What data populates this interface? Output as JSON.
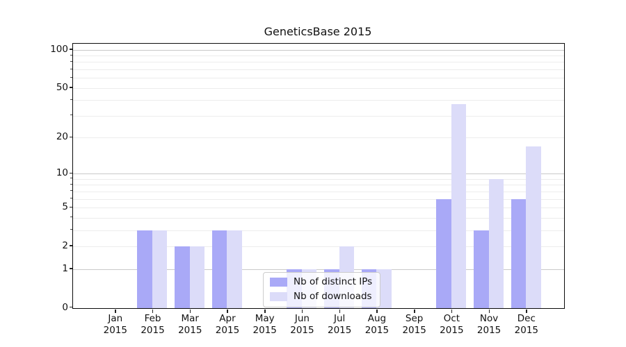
{
  "chart_data": {
    "type": "bar",
    "title": "GeneticsBase 2015",
    "xlabel": "",
    "ylabel": "",
    "scale": "log1p",
    "grid": true,
    "legend_position": "lower-center",
    "categories": [
      {
        "month": "Jan",
        "year": "2015"
      },
      {
        "month": "Feb",
        "year": "2015"
      },
      {
        "month": "Mar",
        "year": "2015"
      },
      {
        "month": "Apr",
        "year": "2015"
      },
      {
        "month": "May",
        "year": "2015"
      },
      {
        "month": "Jun",
        "year": "2015"
      },
      {
        "month": "Jul",
        "year": "2015"
      },
      {
        "month": "Aug",
        "year": "2015"
      },
      {
        "month": "Sep",
        "year": "2015"
      },
      {
        "month": "Oct",
        "year": "2015"
      },
      {
        "month": "Nov",
        "year": "2015"
      },
      {
        "month": "Dec",
        "year": "2015"
      }
    ],
    "series": [
      {
        "name": "Nb of distinct IPs",
        "color": "#a9a9f7",
        "values": [
          0,
          3,
          2,
          3,
          0,
          1,
          1,
          1,
          0,
          6,
          3,
          6
        ]
      },
      {
        "name": "Nb of downloads",
        "color": "#dcdcf9",
        "values": [
          0,
          3,
          2,
          3,
          0,
          1,
          2,
          1,
          0,
          37,
          9,
          17
        ]
      }
    ],
    "yticks_labeled": [
      0,
      1,
      2,
      5,
      10,
      20,
      50,
      100
    ],
    "grid_major": [
      1,
      10,
      100
    ],
    "grid_minor": [
      2,
      3,
      4,
      5,
      6,
      7,
      8,
      9,
      20,
      30,
      40,
      50,
      60,
      70,
      80,
      90
    ],
    "ylim": [
      0,
      111
    ],
    "colors": {
      "grid_major": "#c9c9c9",
      "grid_minor": "#ececec",
      "spine": "#0a0a0a"
    }
  }
}
